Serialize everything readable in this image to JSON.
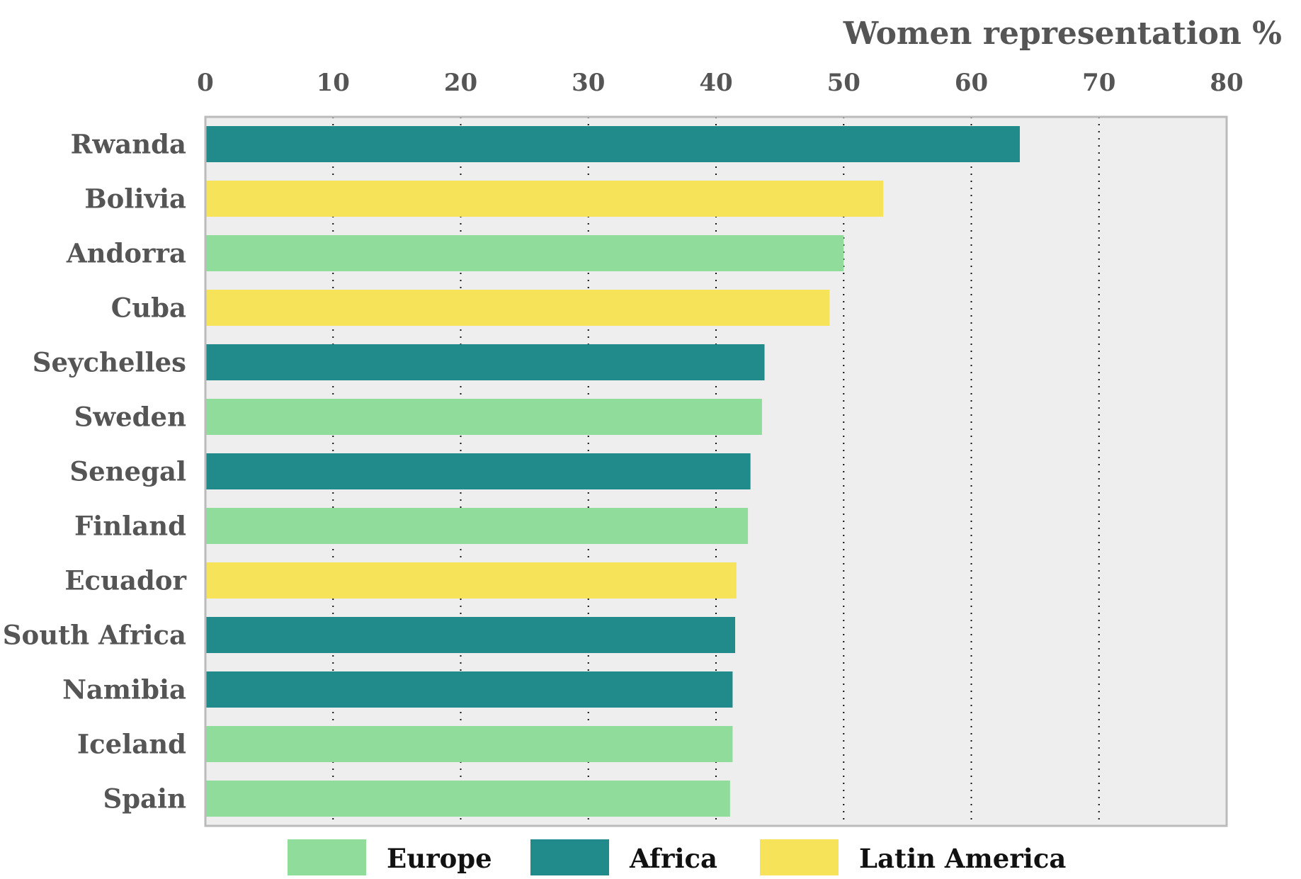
{
  "colors": {
    "Europe": "#8fdc9b",
    "Africa": "#218b8c",
    "Latin America": "#f6e35a",
    "plot_background": "#eeeeee",
    "frame": "#bbbbbb",
    "grid": "#111111",
    "text": "#555555"
  },
  "chart_data": {
    "type": "bar",
    "orientation": "horizontal",
    "title": "",
    "xlabel": "Women representation %",
    "ylabel": "",
    "xlim": [
      0,
      80
    ],
    "xticks": [
      0,
      10,
      20,
      30,
      40,
      50,
      60,
      70,
      80
    ],
    "x_axis_position": "top",
    "grid": "vertical dotted",
    "legend_position": "bottom-center",
    "categories": [
      "Rwanda",
      "Bolivia",
      "Andorra",
      "Cuba",
      "Seychelles",
      "Sweden",
      "Senegal",
      "Finland",
      "Ecuador",
      "South Africa",
      "Namibia",
      "Iceland",
      "Spain"
    ],
    "values": [
      63.8,
      53.1,
      50.0,
      48.9,
      43.8,
      43.6,
      42.7,
      42.5,
      41.6,
      41.5,
      41.3,
      41.3,
      41.1
    ],
    "groups": [
      "Africa",
      "Latin America",
      "Europe",
      "Latin America",
      "Africa",
      "Europe",
      "Africa",
      "Europe",
      "Latin America",
      "Africa",
      "Africa",
      "Europe",
      "Europe"
    ],
    "legend": [
      "Europe",
      "Africa",
      "Latin America"
    ]
  }
}
